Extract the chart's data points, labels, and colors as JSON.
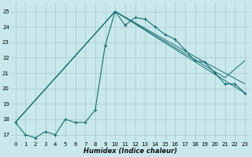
{
  "xlabel": "Humidex (Indice chaleur)",
  "bg_color": "#c8e8ec",
  "grid_color": "#a8c8cc",
  "line_color": "#1a7070",
  "xlim": [
    -0.5,
    23.5
  ],
  "ylim": [
    16.6,
    25.6
  ],
  "yticks": [
    17,
    18,
    19,
    20,
    21,
    22,
    23,
    24,
    25
  ],
  "xticks": [
    0,
    1,
    2,
    3,
    4,
    5,
    6,
    7,
    8,
    9,
    10,
    11,
    12,
    13,
    14,
    15,
    16,
    17,
    18,
    19,
    20,
    21,
    22,
    23
  ],
  "main_line": {
    "x": [
      0,
      1,
      2,
      3,
      4,
      5,
      6,
      7,
      8,
      9,
      10,
      11,
      12,
      13,
      14,
      15,
      16,
      17,
      18,
      19,
      20,
      21,
      22,
      23
    ],
    "y": [
      17.8,
      17.0,
      16.8,
      17.2,
      17.0,
      18.0,
      17.8,
      17.8,
      18.6,
      22.8,
      25.0,
      24.1,
      24.6,
      24.5,
      24.0,
      23.5,
      23.2,
      22.5,
      21.8,
      21.7,
      21.0,
      20.3,
      20.3,
      19.7
    ]
  },
  "fan_lines": [
    {
      "x": [
        0,
        10,
        19,
        21,
        23
      ],
      "y": [
        17.8,
        25.0,
        21.7,
        21.0,
        20.3
      ]
    },
    {
      "x": [
        0,
        10,
        21,
        23
      ],
      "y": [
        17.8,
        25.0,
        20.7,
        21.8
      ]
    },
    {
      "x": [
        0,
        10,
        23
      ],
      "y": [
        17.8,
        25.0,
        19.7
      ]
    }
  ]
}
